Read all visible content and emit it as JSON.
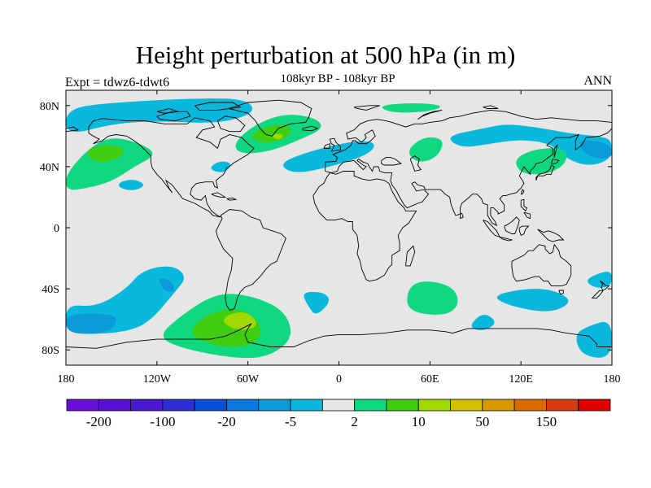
{
  "header": {
    "title": "Height perturbation at 500 hPa (in m)",
    "subtitle": "108kyr BP - 108kyr BP",
    "left_label": "Expt = tdwz6-tdwt6",
    "right_label": "ANN"
  },
  "map": {
    "projection": "cylindrical equidistant",
    "lon_range": [
      -180,
      180
    ],
    "lat_range": [
      -90,
      90
    ],
    "background_color": "#e6e6e6",
    "lon_ticks": [
      {
        "value": -180,
        "label": "180"
      },
      {
        "value": -120,
        "label": "120W"
      },
      {
        "value": -60,
        "label": "60W"
      },
      {
        "value": 0,
        "label": "0"
      },
      {
        "value": 60,
        "label": "60E"
      },
      {
        "value": 120,
        "label": "120E"
      },
      {
        "value": 180,
        "label": "180"
      }
    ],
    "lat_ticks": [
      {
        "value": 80,
        "label": "80N"
      },
      {
        "value": 40,
        "label": "40N"
      },
      {
        "value": 0,
        "label": "0"
      },
      {
        "value": -40,
        "label": "40S"
      },
      {
        "value": -80,
        "label": "80S"
      }
    ]
  },
  "colorbar": {
    "colors": [
      "#6a0fd8",
      "#5a10d2",
      "#4a18d0",
      "#2e2ed6",
      "#0a4fd8",
      "#0a78dc",
      "#0a9ad8",
      "#0ab8dc",
      "#e6e6e6",
      "#10d880",
      "#40cc10",
      "#a0d800",
      "#d0c000",
      "#d89800",
      "#d86a00",
      "#d83a10",
      "#e00000"
    ],
    "labels": [
      {
        "after_box": 1,
        "text": "-200"
      },
      {
        "after_box": 3,
        "text": "-100"
      },
      {
        "after_box": 5,
        "text": "-20"
      },
      {
        "after_box": 7,
        "text": "-5"
      },
      {
        "after_box": 9,
        "text": "2"
      },
      {
        "after_box": 11,
        "text": "10"
      },
      {
        "after_box": 13,
        "text": "50"
      },
      {
        "after_box": 15,
        "text": "150"
      }
    ]
  },
  "anomaly_regions": [
    {
      "name": "arctic-canada-blue",
      "color": "#0ab8dc",
      "points": [
        [
          -180,
          78
        ],
        [
          -150,
          82
        ],
        [
          -90,
          85
        ],
        [
          -60,
          84
        ],
        [
          -55,
          75
        ],
        [
          -80,
          68
        ],
        [
          -120,
          70
        ],
        [
          -150,
          68
        ],
        [
          -180,
          60
        ]
      ]
    },
    {
      "name": "siberia-blue",
      "color": "#0ab8dc",
      "points": [
        [
          70,
          60
        ],
        [
          95,
          65
        ],
        [
          110,
          68
        ],
        [
          130,
          66
        ],
        [
          150,
          62
        ],
        [
          170,
          60
        ],
        [
          180,
          58
        ],
        [
          180,
          45
        ],
        [
          165,
          40
        ],
        [
          150,
          45
        ],
        [
          140,
          55
        ],
        [
          120,
          58
        ],
        [
          100,
          55
        ],
        [
          80,
          52
        ]
      ]
    },
    {
      "name": "siberia-blue-core",
      "color": "#0a9ad8",
      "points": [
        [
          158,
          58
        ],
        [
          175,
          56
        ],
        [
          180,
          52
        ],
        [
          180,
          46
        ],
        [
          170,
          45
        ],
        [
          160,
          50
        ]
      ]
    },
    {
      "name": "atlantic-blue",
      "color": "#0ab8dc",
      "points": [
        [
          -40,
          42
        ],
        [
          -20,
          50
        ],
        [
          10,
          57
        ],
        [
          25,
          56
        ],
        [
          20,
          48
        ],
        [
          -5,
          40
        ],
        [
          -30,
          35
        ]
      ]
    },
    {
      "name": "east-asia-green",
      "color": "#10d880",
      "points": [
        [
          115,
          45
        ],
        [
          130,
          52
        ],
        [
          150,
          52
        ],
        [
          150,
          42
        ],
        [
          138,
          35
        ],
        [
          120,
          35
        ]
      ]
    },
    {
      "name": "pacific-green",
      "color": "#10d880",
      "points": [
        [
          -180,
          35
        ],
        [
          -165,
          52
        ],
        [
          -150,
          60
        ],
        [
          -130,
          55
        ],
        [
          -120,
          48
        ],
        [
          -135,
          40
        ],
        [
          -150,
          30
        ],
        [
          -170,
          25
        ],
        [
          -180,
          25
        ]
      ]
    },
    {
      "name": "pacific-green-core",
      "color": "#40cc10",
      "points": [
        [
          -168,
          50
        ],
        [
          -155,
          55
        ],
        [
          -140,
          52
        ],
        [
          -145,
          45
        ],
        [
          -160,
          42
        ]
      ]
    },
    {
      "name": "greenland-green",
      "color": "#10d880",
      "points": [
        [
          -70,
          55
        ],
        [
          -55,
          68
        ],
        [
          -35,
          75
        ],
        [
          -15,
          72
        ],
        [
          -10,
          65
        ],
        [
          -25,
          58
        ],
        [
          -45,
          50
        ],
        [
          -65,
          48
        ]
      ]
    },
    {
      "name": "greenland-green-core",
      "color": "#40cc10",
      "points": [
        [
          -60,
          60
        ],
        [
          -45,
          68
        ],
        [
          -30,
          66
        ],
        [
          -35,
          58
        ],
        [
          -50,
          55
        ]
      ]
    },
    {
      "name": "greenland-yellow-core",
      "color": "#a0d800",
      "points": [
        [
          -45,
          60
        ],
        [
          -40,
          62
        ],
        [
          -36,
          60
        ],
        [
          -40,
          57
        ]
      ]
    },
    {
      "name": "arctic-green",
      "color": "#10d880",
      "points": [
        [
          25,
          80
        ],
        [
          50,
          82
        ],
        [
          70,
          80
        ],
        [
          60,
          76
        ],
        [
          35,
          75
        ]
      ]
    },
    {
      "name": "scandinavia-green",
      "color": "#10d880",
      "points": [
        [
          44,
          50
        ],
        [
          56,
          60
        ],
        [
          70,
          58
        ],
        [
          65,
          46
        ],
        [
          52,
          42
        ]
      ]
    },
    {
      "name": "pacific-blue-small",
      "color": "#0ab8dc",
      "points": [
        [
          -145,
          30
        ],
        [
          -135,
          32
        ],
        [
          -127,
          28
        ],
        [
          -135,
          24
        ],
        [
          -145,
          26
        ]
      ]
    },
    {
      "name": "atlantic-blue-small",
      "color": "#0ab8dc",
      "points": [
        [
          -85,
          40
        ],
        [
          -78,
          44
        ],
        [
          -70,
          42
        ],
        [
          -75,
          36
        ],
        [
          -83,
          37
        ]
      ]
    },
    {
      "name": "south-pacific-blue",
      "color": "#0ab8dc",
      "points": [
        [
          -180,
          -50
        ],
        [
          -160,
          -52
        ],
        [
          -140,
          -40
        ],
        [
          -130,
          -28
        ],
        [
          -110,
          -24
        ],
        [
          -100,
          -32
        ],
        [
          -108,
          -42
        ],
        [
          -125,
          -62
        ],
        [
          -140,
          -68
        ],
        [
          -165,
          -70
        ],
        [
          -180,
          -68
        ]
      ]
    },
    {
      "name": "south-pacific-blue-core",
      "color": "#0a9ad8",
      "points": [
        [
          -180,
          -57
        ],
        [
          -160,
          -56
        ],
        [
          -145,
          -58
        ],
        [
          -150,
          -68
        ],
        [
          -170,
          -70
        ],
        [
          -180,
          -67
        ]
      ]
    },
    {
      "name": "south-pacific-blue-small",
      "color": "#0a9ad8",
      "points": [
        [
          -120,
          -32
        ],
        [
          -110,
          -35
        ],
        [
          -108,
          -42
        ],
        [
          -115,
          -42
        ]
      ]
    },
    {
      "name": "south-america-green",
      "color": "#10d880",
      "points": [
        [
          -120,
          -72
        ],
        [
          -100,
          -80
        ],
        [
          -65,
          -86
        ],
        [
          -45,
          -84
        ],
        [
          -30,
          -72
        ],
        [
          -35,
          -55
        ],
        [
          -55,
          -45
        ],
        [
          -80,
          -42
        ],
        [
          -105,
          -58
        ]
      ]
    },
    {
      "name": "south-america-green-core",
      "color": "#40cc10",
      "points": [
        [
          -100,
          -70
        ],
        [
          -80,
          -78
        ],
        [
          -60,
          -78
        ],
        [
          -50,
          -70
        ],
        [
          -55,
          -58
        ],
        [
          -70,
          -52
        ],
        [
          -90,
          -58
        ]
      ]
    },
    {
      "name": "south-america-yellow-core",
      "color": "#a0d800",
      "points": [
        [
          -78,
          -62
        ],
        [
          -65,
          -68
        ],
        [
          -52,
          -64
        ],
        [
          -60,
          -55
        ],
        [
          -72,
          -56
        ]
      ]
    },
    {
      "name": "south-atlantic-blue",
      "color": "#0ab8dc",
      "points": [
        [
          -15,
          -58
        ],
        [
          -5,
          -48
        ],
        [
          -10,
          -42
        ],
        [
          -25,
          -42
        ],
        [
          -20,
          -52
        ]
      ]
    },
    {
      "name": "indian-ocean-green",
      "color": "#10d880",
      "points": [
        [
          45,
          -55
        ],
        [
          70,
          -58
        ],
        [
          80,
          -50
        ],
        [
          75,
          -38
        ],
        [
          55,
          -34
        ],
        [
          45,
          -40
        ]
      ]
    },
    {
      "name": "indian-ocean-blue-small",
      "color": "#0ab8dc",
      "points": [
        [
          85,
          -65
        ],
        [
          95,
          -68
        ],
        [
          105,
          -62
        ],
        [
          95,
          -55
        ]
      ]
    },
    {
      "name": "south-indian-blue",
      "color": "#0ab8dc",
      "points": [
        [
          100,
          -45
        ],
        [
          115,
          -52
        ],
        [
          140,
          -56
        ],
        [
          155,
          -48
        ],
        [
          140,
          -40
        ],
        [
          120,
          -40
        ]
      ]
    },
    {
      "name": "nz-blue",
      "color": "#0ab8dc",
      "points": [
        [
          162,
          -35
        ],
        [
          170,
          -40
        ],
        [
          180,
          -38
        ],
        [
          180,
          -28
        ],
        [
          170,
          -30
        ]
      ]
    },
    {
      "name": "antarctic-blue",
      "color": "#0ab8dc",
      "points": [
        [
          155,
          -70
        ],
        [
          165,
          -64
        ],
        [
          180,
          -60
        ],
        [
          180,
          -86
        ],
        [
          160,
          -84
        ]
      ]
    }
  ]
}
